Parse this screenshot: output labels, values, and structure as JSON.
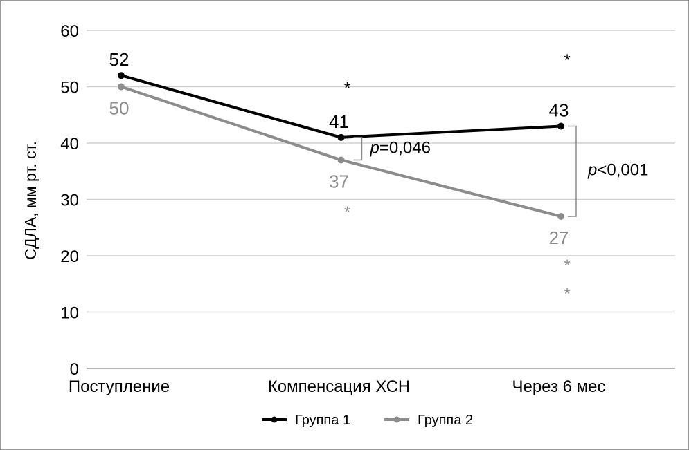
{
  "chart_data": {
    "type": "line",
    "title": "",
    "xlabel": "",
    "ylabel": "СДЛА, мм рт. ст.",
    "ylim": [
      0,
      60
    ],
    "yticks": [
      0,
      10,
      20,
      30,
      40,
      50,
      60
    ],
    "grid": true,
    "categories": [
      "Поступление",
      "Компенсация ХСН",
      "Через 6 мес"
    ],
    "series": [
      {
        "name": "Группа 1",
        "values": [
          52,
          41,
          43
        ],
        "color": "#000000",
        "labels": [
          "52",
          "41",
          "43"
        ]
      },
      {
        "name": "Группа 2",
        "values": [
          50,
          37,
          27
        ],
        "color": "#8c8c8c",
        "labels": [
          "50",
          "37",
          "27"
        ]
      }
    ],
    "significance_markers": [
      {
        "series": 0,
        "category": 1,
        "text": "*"
      },
      {
        "series": 0,
        "category": 2,
        "text": "*"
      },
      {
        "series": 1,
        "category": 1,
        "text": "*"
      },
      {
        "series": 1,
        "category": 2,
        "text": "*"
      },
      {
        "series": 1,
        "category": 2,
        "text": "*"
      }
    ],
    "comparisons": [
      {
        "category": 1,
        "p_symbol": "p",
        "p_text": "=0,046"
      },
      {
        "category": 2,
        "p_symbol": "p",
        "p_text": "<0,001"
      }
    ],
    "legend_position": "bottom"
  }
}
